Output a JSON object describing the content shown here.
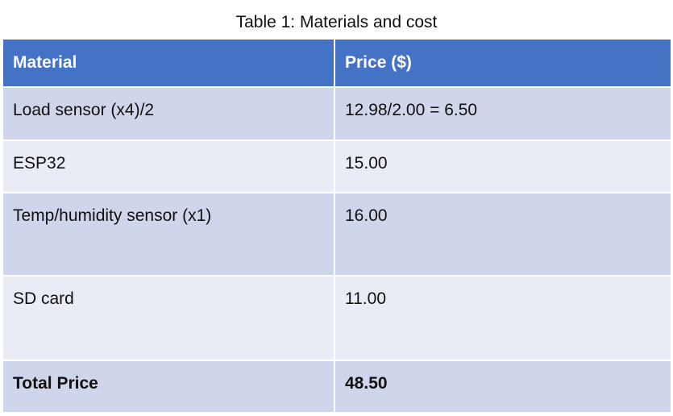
{
  "table": {
    "caption": "Table 1: Materials and cost",
    "header": [
      "Material",
      "Price ($)"
    ],
    "rows": [
      [
        "Load sensor (x4)/2",
        "12.98/2.00 = 6.50"
      ],
      [
        "ESP32",
        "15.00"
      ],
      [
        "Temp/humidity sensor (x1)",
        "16.00"
      ],
      [
        "SD card",
        "11.00"
      ],
      [
        "Total Price",
        "48.50"
      ]
    ]
  }
}
